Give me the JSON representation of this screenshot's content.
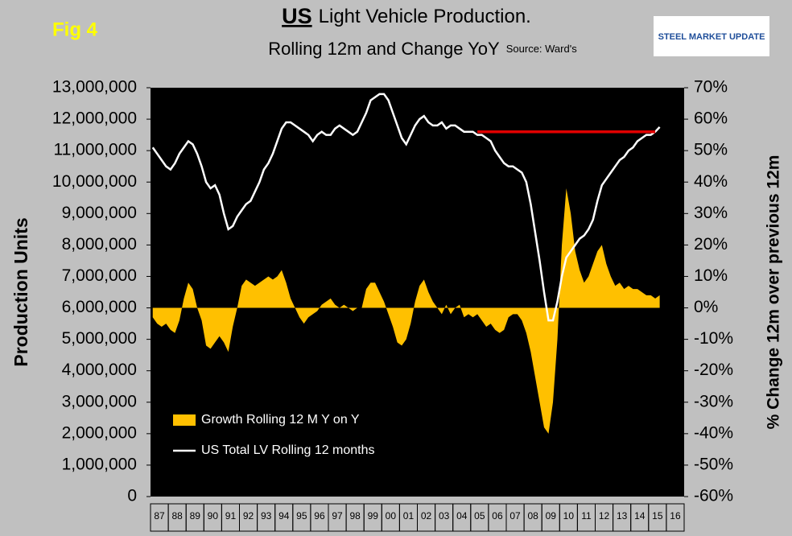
{
  "chart_data": {
    "type": "area-line",
    "figure_label": "Fig 4",
    "title_emphasis": "US",
    "title": "Light Vehicle Production.",
    "subtitle": "Rolling 12m and Change YoY",
    "source": "Source: Ward's",
    "logo": "STEEL MARKET UPDATE",
    "y_label": "Production Units",
    "y2_label": "% Change 12m over previous 12m",
    "categories": [
      "87",
      null,
      null,
      null,
      "88",
      null,
      null,
      null,
      "89",
      null,
      null,
      null,
      "90",
      null,
      null,
      null,
      "91",
      null,
      null,
      null,
      "92",
      null,
      null,
      null,
      "93",
      null,
      null,
      null,
      "94",
      null,
      null,
      null,
      "95",
      null,
      null,
      null,
      "96",
      null,
      null,
      null,
      "97",
      null,
      null,
      null,
      "98",
      null,
      null,
      null,
      "99",
      null,
      null,
      null,
      "00",
      null,
      null,
      null,
      "01",
      null,
      null,
      null,
      "02",
      null,
      null,
      null,
      "03",
      null,
      null,
      null,
      "04",
      null,
      null,
      null,
      "05",
      null,
      null,
      null,
      "06",
      null,
      null,
      null,
      "07",
      null,
      null,
      null,
      "08",
      null,
      null,
      null,
      "09",
      null,
      null,
      null,
      "10",
      null,
      null,
      null,
      "11",
      null,
      null,
      null,
      "12",
      null,
      null,
      null,
      "13",
      null,
      null,
      null,
      "14",
      null,
      null,
      null,
      "15",
      null,
      null,
      null,
      "16",
      null,
      null,
      null
    ],
    "series": [
      {
        "name": "Growth Rolling 12 M Y on Y",
        "type": "area",
        "axis": "y2",
        "color": "#ffc000",
        "values": [
          -3,
          -5,
          -6,
          -5,
          -7,
          -8,
          -4,
          3,
          8,
          6,
          0,
          -4,
          -12,
          -13,
          -11,
          -9,
          -11,
          -14,
          -6,
          0,
          7,
          9,
          8,
          7,
          8,
          9,
          10,
          9,
          10,
          12,
          8,
          3,
          0,
          -3,
          -5,
          -3,
          -2,
          -1,
          1,
          2,
          3,
          1,
          0,
          1,
          0,
          -1,
          0,
          0,
          6,
          8,
          8,
          5,
          2,
          -2,
          -6,
          -11,
          -12,
          -10,
          -5,
          2,
          7,
          9,
          5,
          2,
          0,
          -2,
          1,
          -2,
          0,
          1,
          -3,
          -2,
          -3,
          -2,
          -4,
          -6,
          -5,
          -7,
          -8,
          -7,
          -3,
          -2,
          -2,
          -4,
          -8,
          -14,
          -22,
          -30,
          -38,
          -40,
          -30,
          -10,
          20,
          38,
          30,
          18,
          12,
          8,
          10,
          14,
          18,
          20,
          14,
          10,
          7,
          8,
          6,
          7,
          6,
          6,
          5,
          4,
          4,
          3,
          4,
          null,
          null,
          null,
          null,
          null
        ]
      },
      {
        "name": "US Total LV Rolling 12 months",
        "type": "line",
        "axis": "y",
        "color": "#ffffff",
        "values": [
          11100000,
          10900000,
          10700000,
          10500000,
          10400000,
          10600000,
          10900000,
          11100000,
          11300000,
          11200000,
          10900000,
          10500000,
          10000000,
          9800000,
          9900000,
          9600000,
          9000000,
          8500000,
          8600000,
          8900000,
          9100000,
          9300000,
          9400000,
          9700000,
          10000000,
          10400000,
          10600000,
          10900000,
          11300000,
          11700000,
          11900000,
          11900000,
          11800000,
          11700000,
          11600000,
          11500000,
          11300000,
          11500000,
          11600000,
          11500000,
          11500000,
          11700000,
          11800000,
          11700000,
          11600000,
          11500000,
          11600000,
          11900000,
          12200000,
          12600000,
          12700000,
          12800000,
          12800000,
          12600000,
          12200000,
          11800000,
          11400000,
          11200000,
          11500000,
          11800000,
          12000000,
          12100000,
          11900000,
          11800000,
          11800000,
          11900000,
          11700000,
          11800000,
          11800000,
          11700000,
          11600000,
          11600000,
          11600000,
          11500000,
          11500000,
          11400000,
          11300000,
          11000000,
          10800000,
          10600000,
          10500000,
          10500000,
          10400000,
          10300000,
          10000000,
          9300000,
          8400000,
          7500000,
          6500000,
          5600000,
          5600000,
          6200000,
          7000000,
          7600000,
          7800000,
          8000000,
          8200000,
          8300000,
          8500000,
          8800000,
          9400000,
          9900000,
          10100000,
          10300000,
          10500000,
          10700000,
          10800000,
          11000000,
          11100000,
          11300000,
          11400000,
          11500000,
          11500000,
          11600000,
          11750000,
          null,
          null,
          null,
          null,
          null
        ]
      }
    ],
    "reference_line": {
      "value": 11600000,
      "color": "#e00000"
    },
    "ylim": [
      0,
      13000000
    ],
    "yticks": [
      0,
      {
        "value": 1000000,
        "label": "1,000,000"
      },
      {
        "value": 2000000,
        "label": "2,000,000"
      },
      {
        "value": 3000000,
        "label": "3,000,000"
      },
      {
        "value": 4000000,
        "label": "4,000,000"
      },
      {
        "value": 5000000,
        "label": "5,000,000"
      },
      {
        "value": 6000000,
        "label": "6,000,000"
      },
      {
        "value": 7000000,
        "label": "7,000,000"
      },
      {
        "value": 8000000,
        "label": "8,000,000"
      },
      {
        "value": 9000000,
        "label": "9,000,000"
      },
      {
        "value": 10000000,
        "label": "10,000,000"
      },
      {
        "value": 11000000,
        "label": "11,000,000"
      },
      {
        "value": 12000000,
        "label": "12,000,000"
      },
      {
        "value": 13000000,
        "label": "13,000,000"
      }
    ],
    "y2lim": [
      -60,
      70
    ],
    "y2ticks": [
      {
        "value": -60,
        "label": "-60%"
      },
      {
        "value": -50,
        "label": "-50%"
      },
      {
        "value": -40,
        "label": "-40%"
      },
      {
        "value": -30,
        "label": "-30%"
      },
      {
        "value": -20,
        "label": "-20%"
      },
      {
        "value": -10,
        "label": "-10%"
      },
      {
        "value": 0,
        "label": "0%"
      },
      {
        "value": 10,
        "label": "10%"
      },
      {
        "value": 20,
        "label": "20%"
      },
      {
        "value": 30,
        "label": "30%"
      },
      {
        "value": 40,
        "label": "40%"
      },
      {
        "value": 50,
        "label": "50%"
      },
      {
        "value": 60,
        "label": "60%"
      },
      {
        "value": 70,
        "label": "70%"
      }
    ],
    "legend": "lower-left"
  }
}
